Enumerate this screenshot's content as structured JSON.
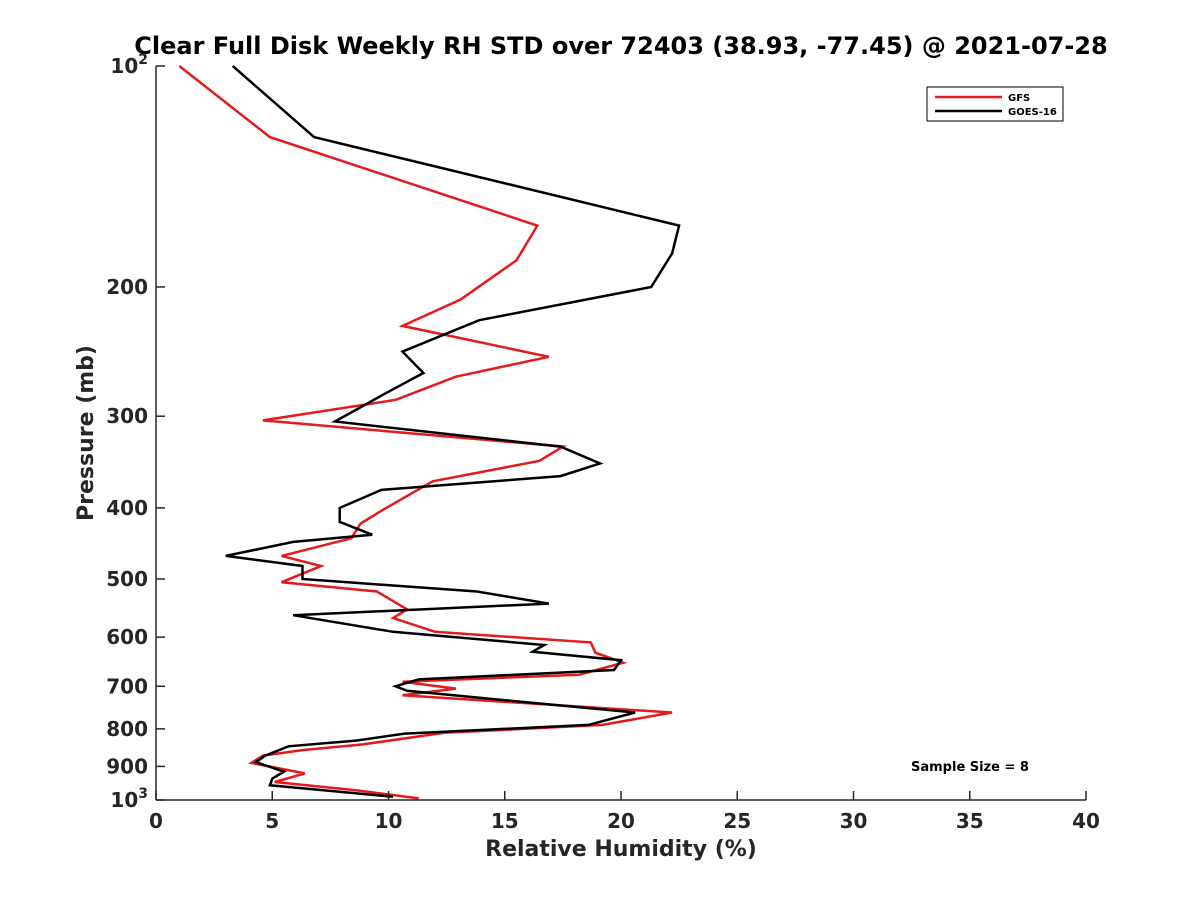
{
  "chart_data": {
    "type": "line",
    "title": "Clear Full Disk Weekly RH STD over 72403 (38.93, -77.45) @ 2021-07-28",
    "xlabel": "Relative Humidity (%)",
    "ylabel": "Pressure (mb)",
    "xlim": [
      0,
      40
    ],
    "ylim": [
      100,
      1000
    ],
    "y_scale": "log",
    "y_reversed": true,
    "grid": false,
    "legend_position": "top-right",
    "x_ticks": [
      0,
      5,
      10,
      15,
      20,
      25,
      30,
      35,
      40
    ],
    "y_ticks": [
      {
        "value": 100,
        "label": "10",
        "sup": "2"
      },
      {
        "value": 200,
        "label": "200",
        "sup": ""
      },
      {
        "value": 300,
        "label": "300",
        "sup": ""
      },
      {
        "value": 400,
        "label": "400",
        "sup": ""
      },
      {
        "value": 500,
        "label": "500",
        "sup": ""
      },
      {
        "value": 600,
        "label": "600",
        "sup": ""
      },
      {
        "value": 700,
        "label": "700",
        "sup": ""
      },
      {
        "value": 800,
        "label": "800",
        "sup": ""
      },
      {
        "value": 900,
        "label": "900",
        "sup": ""
      },
      {
        "value": 1000,
        "label": "10",
        "sup": "3"
      }
    ],
    "series": [
      {
        "name": "GFS",
        "color": "#e41a1c",
        "points": [
          [
            1.0,
            100
          ],
          [
            4.9,
            125
          ],
          [
            16.4,
            165
          ],
          [
            15.5,
            184
          ],
          [
            13.1,
            208
          ],
          [
            10.6,
            226
          ],
          [
            16.9,
            249
          ],
          [
            12.9,
            265
          ],
          [
            10.3,
            285
          ],
          [
            4.6,
            304
          ],
          [
            17.5,
            330
          ],
          [
            16.5,
            345
          ],
          [
            11.9,
            368
          ],
          [
            9.9,
            400
          ],
          [
            8.8,
            420
          ],
          [
            8.4,
            440
          ],
          [
            5.4,
            465
          ],
          [
            7.1,
            480
          ],
          [
            5.4,
            505
          ],
          [
            9.5,
            520
          ],
          [
            10.8,
            550
          ],
          [
            10.2,
            565
          ],
          [
            12.0,
            590
          ],
          [
            18.7,
            610
          ],
          [
            18.9,
            630
          ],
          [
            20.1,
            650
          ],
          [
            18.2,
            675
          ],
          [
            10.6,
            690
          ],
          [
            12.9,
            705
          ],
          [
            10.6,
            720
          ],
          [
            22.2,
            760
          ],
          [
            19.2,
            790
          ],
          [
            12.4,
            810
          ],
          [
            8.9,
            840
          ],
          [
            6.3,
            855
          ],
          [
            4.6,
            870
          ],
          [
            4.1,
            890
          ],
          [
            6.4,
            920
          ],
          [
            5.1,
            945
          ],
          [
            8.6,
            970
          ],
          [
            11.3,
            995
          ]
        ]
      },
      {
        "name": "GOES-16",
        "color": "#000000",
        "points": [
          [
            3.3,
            100
          ],
          [
            6.8,
            125
          ],
          [
            15.2,
            145
          ],
          [
            22.5,
            165
          ],
          [
            22.2,
            180
          ],
          [
            21.3,
            200
          ],
          [
            13.9,
            222
          ],
          [
            10.6,
            245
          ],
          [
            11.5,
            262
          ],
          [
            9.8,
            280
          ],
          [
            7.7,
            305
          ],
          [
            17.4,
            330
          ],
          [
            19.1,
            348
          ],
          [
            17.4,
            362
          ],
          [
            9.7,
            378
          ],
          [
            7.9,
            400
          ],
          [
            7.9,
            418
          ],
          [
            9.3,
            435
          ],
          [
            5.9,
            445
          ],
          [
            3.0,
            465
          ],
          [
            6.3,
            480
          ],
          [
            6.3,
            500
          ],
          [
            13.8,
            520
          ],
          [
            16.9,
            540
          ],
          [
            5.9,
            560
          ],
          [
            10.2,
            590
          ],
          [
            16.7,
            615
          ],
          [
            16.2,
            628
          ],
          [
            20.0,
            645
          ],
          [
            19.7,
            665
          ],
          [
            11.3,
            685
          ],
          [
            10.3,
            700
          ],
          [
            10.8,
            710
          ],
          [
            14.8,
            730
          ],
          [
            20.6,
            760
          ],
          [
            18.6,
            790
          ],
          [
            10.7,
            812
          ],
          [
            8.6,
            830
          ],
          [
            5.7,
            845
          ],
          [
            4.7,
            870
          ],
          [
            4.3,
            888
          ],
          [
            5.5,
            915
          ],
          [
            5.0,
            935
          ],
          [
            4.9,
            955
          ],
          [
            7.2,
            970
          ],
          [
            10.2,
            990
          ]
        ]
      }
    ],
    "annotation": "Sample Size = 8"
  }
}
